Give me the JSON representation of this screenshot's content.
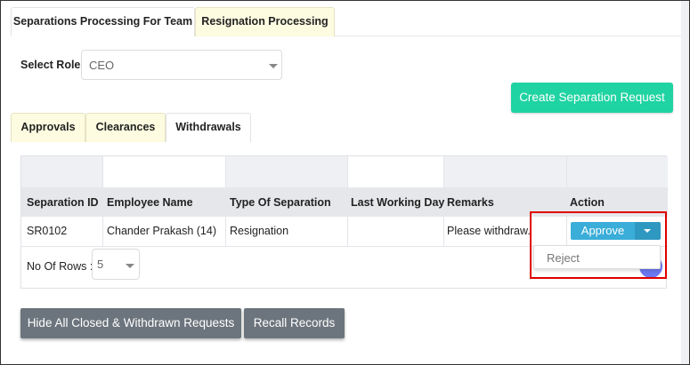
{
  "top_tabs": [
    {
      "label": "Separations Processing For Team",
      "active": true
    },
    {
      "label": "Resignation Processing",
      "active": false
    }
  ],
  "role": {
    "label": "Select Role",
    "value": "CEO"
  },
  "create_button": "Create Separation Request",
  "sub_tabs": [
    {
      "label": "Approvals",
      "active": false
    },
    {
      "label": "Clearances",
      "active": false
    },
    {
      "label": "Withdrawals",
      "active": true
    }
  ],
  "table": {
    "columns": [
      "Separation ID",
      "Employee Name",
      "Type Of Separation",
      "Last Working Day",
      "Remarks",
      "Action"
    ],
    "rows": [
      {
        "id": "SR0102",
        "name": "Chander Prakash (14)",
        "type": "Resignation",
        "last_day": "",
        "remarks": "Please withdraw."
      }
    ],
    "rows_label": "No Of Rows :",
    "rows_value": "5"
  },
  "action": {
    "primary": "Approve",
    "menu": [
      "Reject"
    ]
  },
  "buttons": {
    "hide": "Hide All Closed & Withdrawn Requests",
    "recall": "Recall Records"
  },
  "colors": {
    "accent_green": "#1fd3a2",
    "approve_blue": "#3aaed8",
    "highlight_red": "#e00000"
  }
}
